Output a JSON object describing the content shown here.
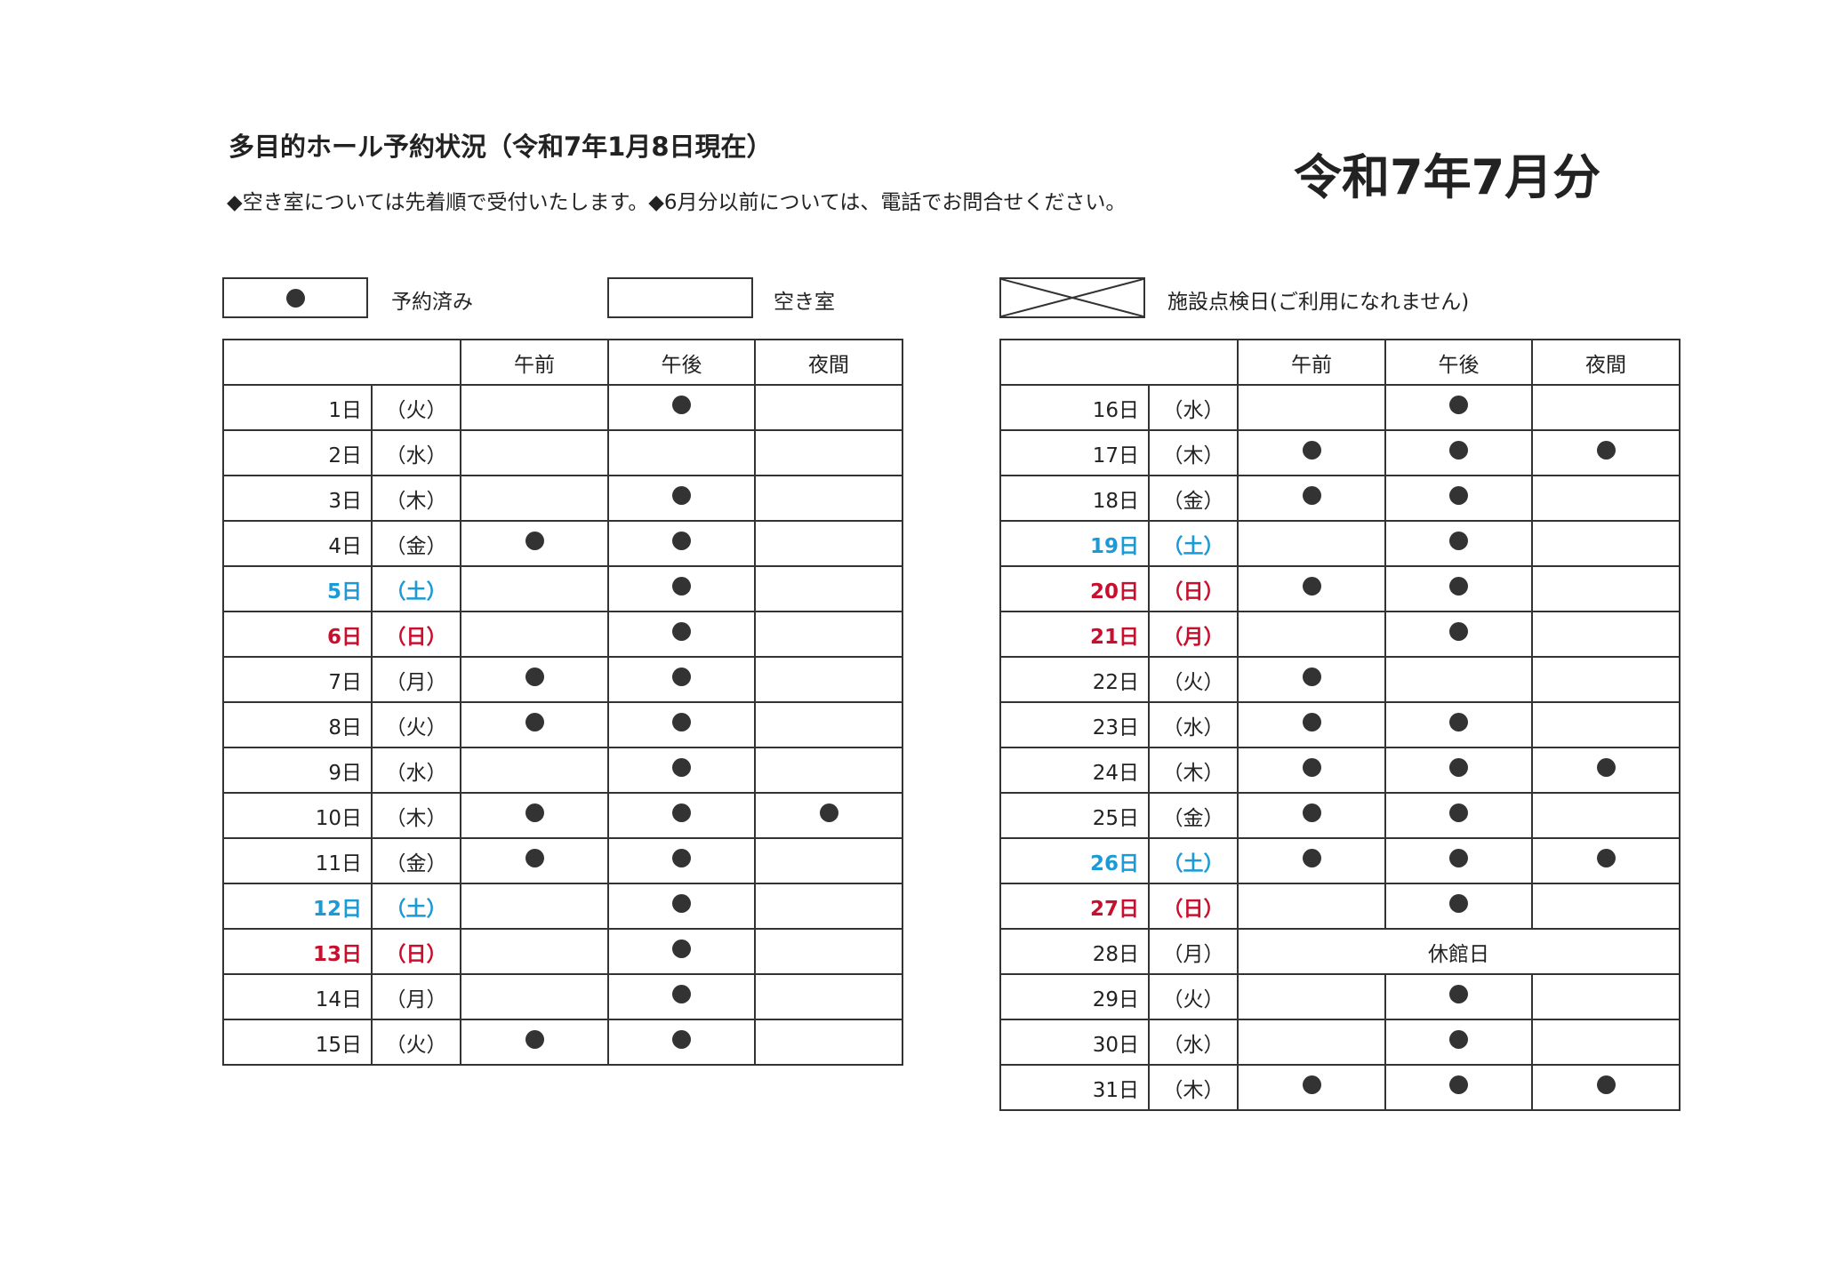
{
  "header": {
    "title": "多目的ホール予約状況（令和7年1月8日現在）",
    "notice": "◆空き室については先着順で受付いたします。◆6月分以前については、電話でお問合せください。",
    "month": "令和7年7月分"
  },
  "legend": {
    "reserved": "予約済み",
    "vacant": "空き室",
    "inspection": "施設点検日(ご利用になれません)"
  },
  "columns": [
    "午前",
    "午後",
    "夜間"
  ],
  "colors": {
    "saturday": "#1a9ad6",
    "sunday_holiday": "#c8102e",
    "dot": "#333333"
  },
  "left_table": [
    {
      "day": "1日",
      "weekday": "（火）",
      "type": "weekday",
      "booked": [
        false,
        true,
        false
      ]
    },
    {
      "day": "2日",
      "weekday": "（水）",
      "type": "weekday",
      "booked": [
        false,
        false,
        false
      ]
    },
    {
      "day": "3日",
      "weekday": "（木）",
      "type": "weekday",
      "booked": [
        false,
        true,
        false
      ]
    },
    {
      "day": "4日",
      "weekday": "（金）",
      "type": "weekday",
      "booked": [
        true,
        true,
        false
      ]
    },
    {
      "day": "5日",
      "weekday": "（土）",
      "type": "sat",
      "booked": [
        false,
        true,
        false
      ]
    },
    {
      "day": "6日",
      "weekday": "（日）",
      "type": "sun",
      "booked": [
        false,
        true,
        false
      ]
    },
    {
      "day": "7日",
      "weekday": "（月）",
      "type": "weekday",
      "booked": [
        true,
        true,
        false
      ]
    },
    {
      "day": "8日",
      "weekday": "（火）",
      "type": "weekday",
      "booked": [
        true,
        true,
        false
      ]
    },
    {
      "day": "9日",
      "weekday": "（水）",
      "type": "weekday",
      "booked": [
        false,
        true,
        false
      ]
    },
    {
      "day": "10日",
      "weekday": "（木）",
      "type": "weekday",
      "booked": [
        true,
        true,
        true
      ]
    },
    {
      "day": "11日",
      "weekday": "（金）",
      "type": "weekday",
      "booked": [
        true,
        true,
        false
      ]
    },
    {
      "day": "12日",
      "weekday": "（土）",
      "type": "sat",
      "booked": [
        false,
        true,
        false
      ]
    },
    {
      "day": "13日",
      "weekday": "（日）",
      "type": "sun",
      "booked": [
        false,
        true,
        false
      ]
    },
    {
      "day": "14日",
      "weekday": "（月）",
      "type": "weekday",
      "booked": [
        false,
        true,
        false
      ]
    },
    {
      "day": "15日",
      "weekday": "（火）",
      "type": "weekday",
      "booked": [
        true,
        true,
        false
      ]
    }
  ],
  "right_table": [
    {
      "day": "16日",
      "weekday": "（水）",
      "type": "weekday",
      "booked": [
        false,
        true,
        false
      ]
    },
    {
      "day": "17日",
      "weekday": "（木）",
      "type": "weekday",
      "booked": [
        true,
        true,
        true
      ]
    },
    {
      "day": "18日",
      "weekday": "（金）",
      "type": "weekday",
      "booked": [
        true,
        true,
        false
      ]
    },
    {
      "day": "19日",
      "weekday": "（土）",
      "type": "sat",
      "booked": [
        false,
        true,
        false
      ]
    },
    {
      "day": "20日",
      "weekday": "（日）",
      "type": "sun",
      "booked": [
        true,
        true,
        false
      ]
    },
    {
      "day": "21日",
      "weekday": "（月）",
      "type": "sun",
      "booked": [
        false,
        true,
        false
      ]
    },
    {
      "day": "22日",
      "weekday": "（火）",
      "type": "weekday",
      "booked": [
        true,
        false,
        false
      ]
    },
    {
      "day": "23日",
      "weekday": "（水）",
      "type": "weekday",
      "booked": [
        true,
        true,
        false
      ]
    },
    {
      "day": "24日",
      "weekday": "（木）",
      "type": "weekday",
      "booked": [
        true,
        true,
        true
      ]
    },
    {
      "day": "25日",
      "weekday": "（金）",
      "type": "weekday",
      "booked": [
        true,
        true,
        false
      ]
    },
    {
      "day": "26日",
      "weekday": "（土）",
      "type": "sat",
      "booked": [
        true,
        true,
        true
      ]
    },
    {
      "day": "27日",
      "weekday": "（日）",
      "type": "sun",
      "booked": [
        false,
        true,
        false
      ]
    },
    {
      "day": "28日",
      "weekday": "（月）",
      "type": "weekday",
      "closed": "休館日"
    },
    {
      "day": "29日",
      "weekday": "（火）",
      "type": "weekday",
      "booked": [
        false,
        true,
        false
      ]
    },
    {
      "day": "30日",
      "weekday": "（水）",
      "type": "weekday",
      "booked": [
        false,
        true,
        false
      ]
    },
    {
      "day": "31日",
      "weekday": "（木）",
      "type": "weekday",
      "booked": [
        true,
        true,
        true
      ]
    }
  ]
}
